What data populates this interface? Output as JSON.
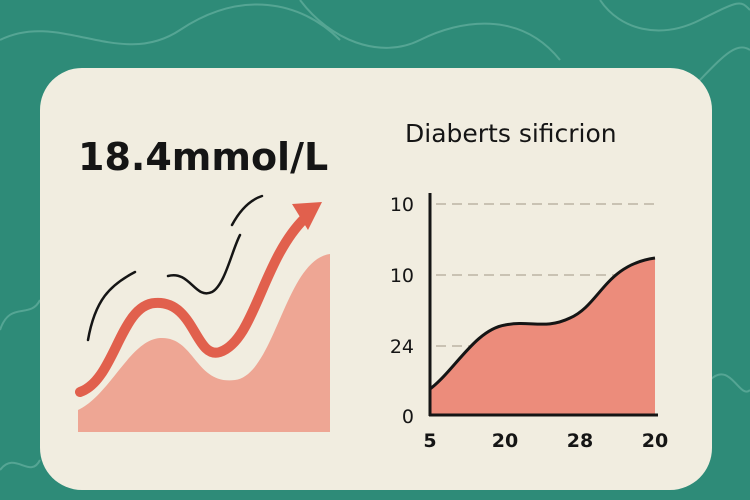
{
  "header": {
    "value": "18.4mmol/L"
  },
  "panel": {
    "title": "Diaberts sificrion",
    "y_labels": [
      "10",
      "10",
      "24",
      "0"
    ],
    "x_labels": [
      "5",
      "20",
      "28",
      "20"
    ]
  }
}
